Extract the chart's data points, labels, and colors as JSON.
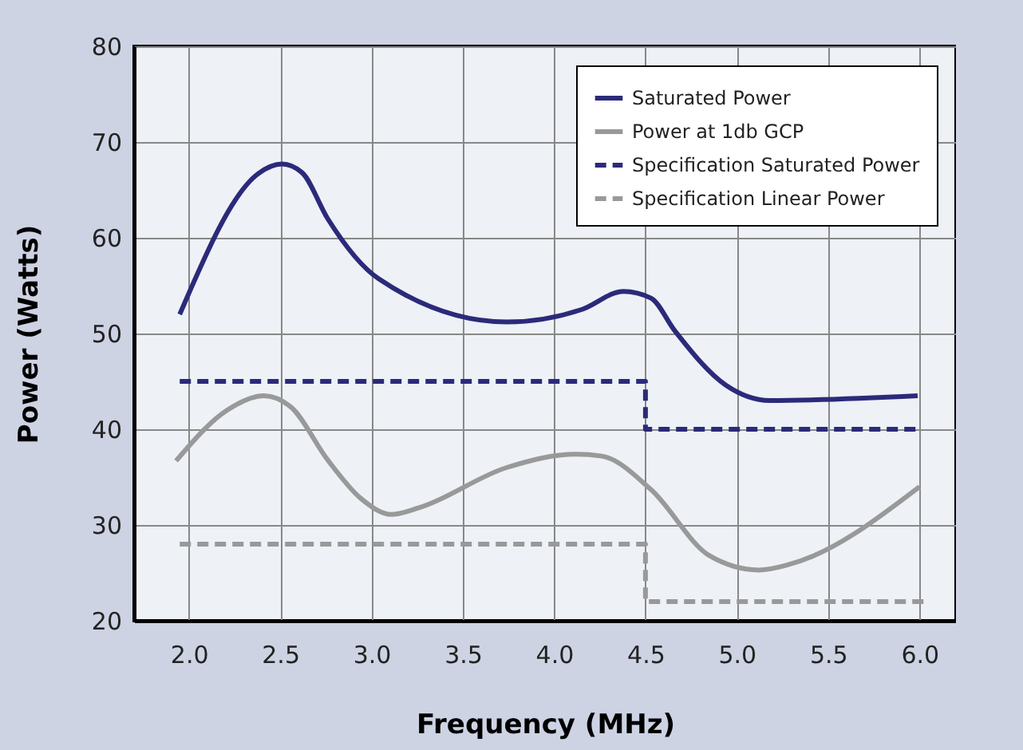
{
  "chart_data": {
    "type": "line",
    "xlabel": "Frequency (MHz)",
    "ylabel": "Power (Watts)",
    "xlim": [
      1.7,
      6.2
    ],
    "xticks": [
      {
        "value": 2,
        "label": "2.0"
      },
      {
        "value": 2.5,
        "label": "2.5"
      },
      {
        "value": 3,
        "label": "3.0"
      },
      {
        "value": 3.5,
        "label": "3.5"
      },
      {
        "value": 4,
        "label": "4.0"
      },
      {
        "value": 4.5,
        "label": "4.5"
      },
      {
        "value": 5,
        "label": "5.0"
      },
      {
        "value": 5.5,
        "label": "5.5"
      },
      {
        "value": 6,
        "label": "6.0"
      }
    ],
    "ylim": [
      20,
      80
    ],
    "yticks": [
      20,
      30,
      40,
      50,
      60,
      70,
      80
    ],
    "grid": true,
    "legend": "top right",
    "series": [
      {
        "name": "Saturated Power",
        "color": "#2b2a7a",
        "type": "line",
        "line_style": "solid",
        "x": [
          1.95,
          2.38,
          2.51,
          2.62,
          2.76,
          3.04,
          3.74,
          4.15,
          4.38,
          4.53,
          4.66,
          4.94,
          5.18,
          5.99
        ],
        "values": [
          52,
          66.7,
          67.7,
          66.8,
          62,
          55.7,
          51.2,
          52.5,
          54.4,
          53.7,
          50.3,
          44.6,
          43,
          43.5
        ]
      },
      {
        "name": "Power at 1db GCP",
        "color": "#999999",
        "type": "line",
        "line_style": "solid",
        "x": [
          1.93,
          2.21,
          2.41,
          2.56,
          2.76,
          2.94,
          3.11,
          3.26,
          3.74,
          4.12,
          4.26,
          4.53,
          4.85,
          5.12,
          5.29,
          6.0
        ],
        "values": [
          36.7,
          42,
          43.5,
          42.3,
          36.8,
          32.8,
          31.1,
          31.8,
          36,
          37.4,
          37.2,
          33.7,
          26.8,
          25.3,
          25.9,
          34
        ]
      },
      {
        "name": "Specification Saturated Power",
        "color": "#2b2a7a",
        "type": "step",
        "line_style": "dashed",
        "x": [
          1.95,
          4.5,
          6.0
        ],
        "values": [
          45,
          40,
          40
        ]
      },
      {
        "name": "Specification Linear Power",
        "color": "#999999",
        "type": "step",
        "line_style": "dashed",
        "x": [
          1.95,
          4.5,
          6.05
        ],
        "values": [
          28,
          22,
          22
        ]
      }
    ]
  }
}
